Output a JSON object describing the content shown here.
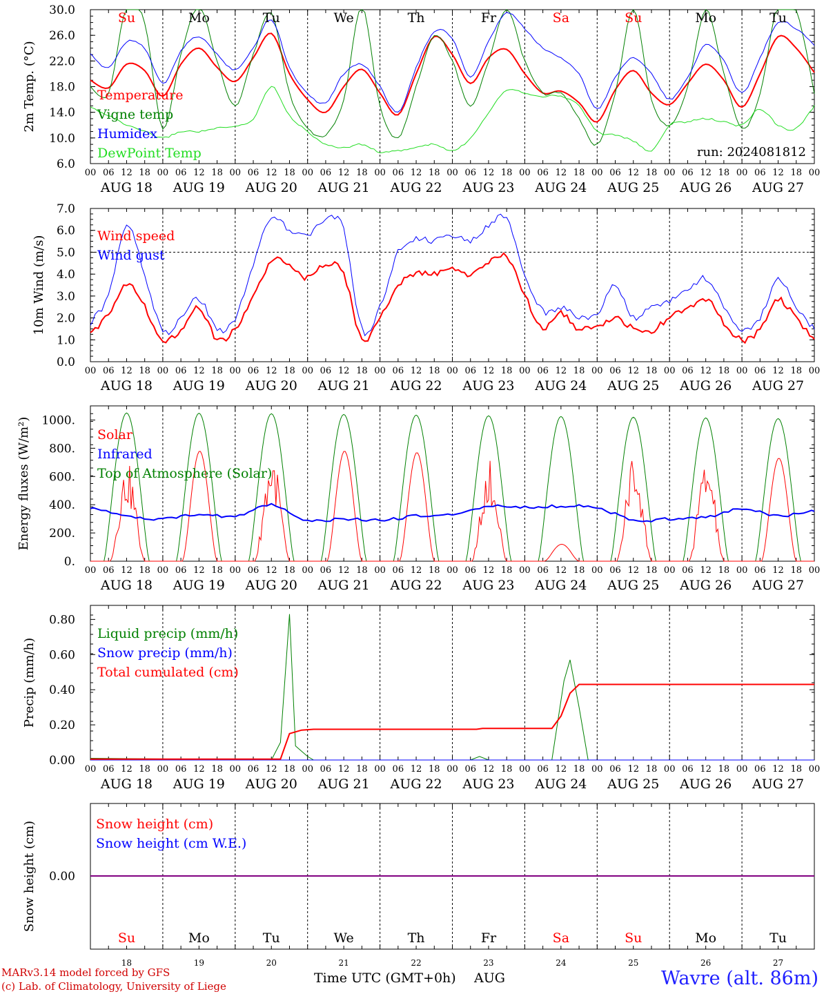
{
  "footer": {
    "credit_line1": "MARv3.14 model forced by GFS",
    "credit_line2": "(c) Lab. of Climatology, University of Liege",
    "xaxis_title": "Time UTC (GMT+0h)",
    "xaxis_month": "AUG",
    "station": "Wavre (alt. 86m)"
  },
  "colors": {
    "red": "#ff0000",
    "green": "#008000",
    "blue": "#0000ff",
    "lightgreen": "#22dd22",
    "purple": "#800080"
  },
  "chart_data": [
    {
      "type": "line",
      "ylabel": "2m Temp. (°C)",
      "ylim": [
        6,
        30
      ],
      "yticks": [
        "6.0",
        "10.0",
        "14.0",
        "18.0",
        "22.0",
        "26.0",
        "30.0"
      ],
      "hour_ticks": [
        "00",
        "06",
        "12",
        "18"
      ],
      "day_labels": [
        "AUG 18",
        "AUG 19",
        "AUG 20",
        "AUG 21",
        "AUG 22",
        "AUG 23",
        "AUG 24",
        "AUG 25",
        "AUG 26",
        "AUG 27"
      ],
      "weekdays": [
        {
          "label": "Su",
          "color": "#ff0000"
        },
        {
          "label": "Mo",
          "color": "#000000"
        },
        {
          "label": "Tu",
          "color": "#000000"
        },
        {
          "label": "We",
          "color": "#000000"
        },
        {
          "label": "Th",
          "color": "#000000"
        },
        {
          "label": "Fr",
          "color": "#000000"
        },
        {
          "label": "Sa",
          "color": "#ff0000"
        },
        {
          "label": "Su",
          "color": "#ff0000"
        },
        {
          "label": "Mo",
          "color": "#000000"
        },
        {
          "label": "Tu",
          "color": "#000000"
        }
      ],
      "annotation": "run: 2024081812",
      "x_hours": [
        0,
        6,
        12,
        18,
        24,
        30,
        36,
        42,
        48,
        54,
        60,
        66,
        72,
        78,
        84,
        90,
        96,
        102,
        108,
        114,
        120,
        126,
        132,
        138,
        144,
        150,
        156,
        162,
        168,
        174,
        180,
        186,
        192,
        198,
        204,
        210,
        216,
        222,
        228,
        234,
        240
      ],
      "series": [
        {
          "name": "Temperature",
          "color": "#ff0000",
          "width": 2,
          "values": [
            19.0,
            17.8,
            21.5,
            20.5,
            16.5,
            21.5,
            24.0,
            21.0,
            18.8,
            22.5,
            26.3,
            20.0,
            16.0,
            14.0,
            18.0,
            20.7,
            17.0,
            13.6,
            20.0,
            25.8,
            23.0,
            18.5,
            22.5,
            23.8,
            20.0,
            17.0,
            17.3,
            15.5,
            12.5,
            17.5,
            20.5,
            17.0,
            15.2,
            18.5,
            21.5,
            19.0,
            14.8,
            20.0,
            25.8,
            24.0,
            20.2
          ]
        },
        {
          "name": "Vigne temp",
          "color": "#008000",
          "width": 1,
          "values": [
            18.0,
            17.0,
            30.5,
            28.0,
            11.5,
            23.0,
            30.5,
            22.0,
            15.0,
            23.0,
            29.5,
            17.0,
            11.5,
            10.5,
            16.0,
            30.5,
            15.0,
            10.0,
            18.0,
            26.0,
            22.0,
            15.0,
            22.0,
            30.0,
            22.0,
            17.0,
            17.0,
            13.0,
            9.0,
            17.0,
            30.0,
            16.0,
            12.0,
            18.0,
            30.0,
            20.0,
            11.5,
            17.0,
            31.0,
            30.0,
            17.0
          ]
        },
        {
          "name": "Humidex",
          "color": "#0000ff",
          "width": 1,
          "values": [
            23.0,
            21.0,
            25.0,
            24.0,
            18.5,
            23.5,
            25.8,
            23.0,
            20.7,
            24.0,
            28.5,
            21.0,
            17.0,
            15.5,
            20.0,
            21.5,
            18.0,
            14.0,
            21.0,
            26.5,
            25.5,
            19.5,
            25.0,
            29.5,
            27.0,
            24.0,
            22.5,
            20.0,
            14.5,
            19.5,
            22.5,
            20.0,
            16.0,
            19.5,
            24.5,
            22.0,
            17.0,
            22.5,
            28.0,
            27.0,
            24.5
          ]
        },
        {
          "name": "DewPoint Temp",
          "color": "#22dd22",
          "width": 1,
          "values": [
            14.8,
            13.5,
            12.0,
            11.0,
            10.0,
            11.0,
            11.0,
            11.5,
            11.8,
            13.0,
            18.0,
            13.5,
            11.0,
            9.0,
            8.5,
            9.0,
            7.8,
            8.0,
            8.5,
            9.0,
            8.0,
            10.0,
            14.0,
            17.5,
            17.0,
            16.5,
            16.5,
            15.0,
            11.0,
            10.5,
            9.5,
            8.0,
            12.0,
            12.5,
            13.0,
            12.5,
            12.0,
            14.5,
            12.0,
            11.5,
            15.0
          ]
        }
      ]
    },
    {
      "type": "line",
      "ylabel": "10m Wind (m/s)",
      "ylim": [
        0,
        7
      ],
      "yticks": [
        "0.0",
        "1.0",
        "2.0",
        "3.0",
        "4.0",
        "5.0",
        "6.0",
        "7.0"
      ],
      "reference_line": 5,
      "x_hours": [
        0,
        6,
        12,
        18,
        24,
        30,
        36,
        42,
        48,
        54,
        60,
        66,
        72,
        78,
        84,
        90,
        96,
        102,
        108,
        114,
        120,
        126,
        132,
        138,
        144,
        150,
        156,
        162,
        168,
        174,
        180,
        186,
        192,
        198,
        204,
        210,
        216,
        222,
        228,
        234,
        240
      ],
      "series": [
        {
          "name": "Wind speed",
          "color": "#ff0000",
          "width": 2,
          "values": [
            1.2,
            2.2,
            3.6,
            2.5,
            1.0,
            1.5,
            2.5,
            1.0,
            1.5,
            3.0,
            4.5,
            4.5,
            3.8,
            4.5,
            4.0,
            1.0,
            2.0,
            3.5,
            4.0,
            4.0,
            4.2,
            4.0,
            4.5,
            4.8,
            3.0,
            1.6,
            2.2,
            1.5,
            1.6,
            2.0,
            1.5,
            1.4,
            2.0,
            2.4,
            2.9,
            1.8,
            1.0,
            1.5,
            2.8,
            2.0,
            1.0
          ]
        },
        {
          "name": "Wind gust",
          "color": "#0000ff",
          "width": 1,
          "values": [
            1.8,
            3.0,
            6.3,
            4.0,
            1.4,
            2.0,
            2.9,
            1.5,
            2.0,
            4.5,
            6.6,
            6.0,
            5.8,
            6.5,
            6.0,
            1.5,
            2.5,
            5.0,
            5.6,
            5.5,
            5.8,
            5.5,
            6.2,
            6.5,
            4.0,
            2.3,
            2.5,
            2.0,
            2.2,
            3.5,
            2.0,
            2.5,
            2.8,
            3.2,
            3.8,
            2.5,
            1.4,
            2.0,
            3.8,
            2.5,
            1.5
          ]
        }
      ]
    },
    {
      "type": "line",
      "ylabel": "Energy fluxes (W/m²)",
      "ylim": [
        0,
        1100
      ],
      "yticks": [
        "0.",
        "200.",
        "400.",
        "600.",
        "800.",
        "1000."
      ],
      "series": [
        {
          "name": "Solar",
          "color": "#ff0000",
          "width": 1,
          "day_peaks": [
            700,
            780,
            770,
            780,
            770,
            720,
            120,
            760,
            730,
            730
          ]
        },
        {
          "name": "Infrared",
          "color": "#0000ff",
          "width": 2,
          "values": [
            380,
            320,
            300,
            330,
            320,
            400,
            290,
            300,
            290,
            320,
            330,
            390,
            380,
            390,
            380,
            290,
            300,
            310,
            370,
            320,
            360
          ]
        },
        {
          "name": "Top of Atmosphere (Solar)",
          "color": "#008000",
          "width": 1,
          "day_peaks": [
            1050,
            1048,
            1045,
            1040,
            1035,
            1030,
            1025,
            1020,
            1015,
            1010
          ]
        }
      ]
    },
    {
      "type": "line",
      "ylabel": "Precip (mm/h)",
      "ylim": [
        0,
        0.88
      ],
      "yticks": [
        "0.00",
        "0.20",
        "0.40",
        "0.60",
        "0.80"
      ],
      "series": [
        {
          "name": "Liquid precip (mm/h)",
          "color": "#008000",
          "width": 1,
          "points": [
            [
              0,
              0.01
            ],
            [
              60,
              0.0
            ],
            [
              63,
              0.1
            ],
            [
              66,
              0.83
            ],
            [
              68,
              0.08
            ],
            [
              72,
              0.02
            ],
            [
              74,
              0.0
            ],
            [
              126,
              0.0
            ],
            [
              129,
              0.02
            ],
            [
              132,
              0.0
            ],
            [
              153,
              0.0
            ],
            [
              157,
              0.45
            ],
            [
              159,
              0.57
            ],
            [
              162,
              0.3
            ],
            [
              165,
              0.0
            ],
            [
              240,
              0.0
            ]
          ]
        },
        {
          "name": "Snow precip (mm/h)",
          "color": "#0000ff",
          "width": 1,
          "points": [
            [
              0,
              0.0
            ],
            [
              240,
              0.0
            ]
          ]
        },
        {
          "name": "Total cumulated (cm)",
          "color": "#ff0000",
          "width": 2,
          "points": [
            [
              0,
              0.005
            ],
            [
              63,
              0.005
            ],
            [
              66,
              0.15
            ],
            [
              70,
              0.17
            ],
            [
              74,
              0.175
            ],
            [
              128,
              0.175
            ],
            [
              130,
              0.18
            ],
            [
              153,
              0.18
            ],
            [
              156,
              0.25
            ],
            [
              159,
              0.38
            ],
            [
              162,
              0.43
            ],
            [
              240,
              0.43
            ]
          ]
        }
      ]
    },
    {
      "type": "line",
      "ylabel": "Snow height (cm)",
      "yticks": [
        "0.00"
      ],
      "day_numbers": [
        "18",
        "19",
        "20",
        "21",
        "22",
        "23",
        "24",
        "25",
        "26",
        "27"
      ],
      "series": [
        {
          "name": "Snow height (cm)",
          "color": "#ff0000",
          "width": 1,
          "values": [
            0,
            0
          ]
        },
        {
          "name": "Snow height (cm W.E.)",
          "color": "#0000ff",
          "width": 1,
          "values": [
            0,
            0
          ]
        }
      ]
    }
  ]
}
